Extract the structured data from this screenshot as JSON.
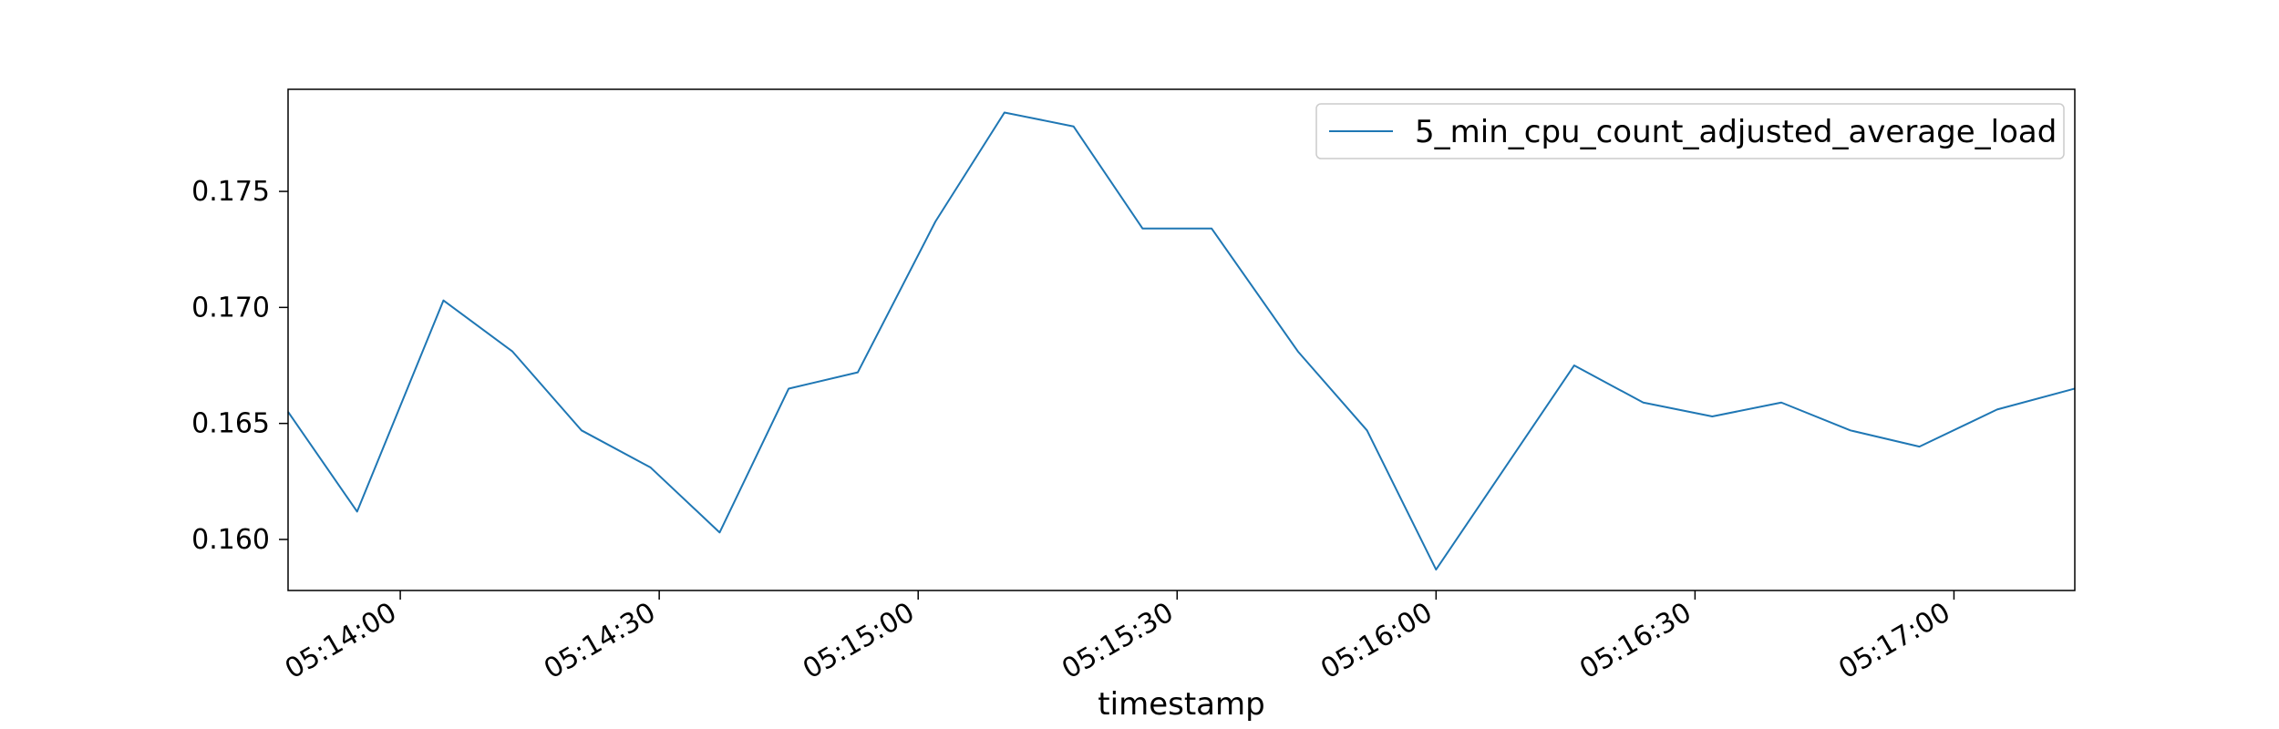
{
  "chart_data": {
    "type": "line",
    "title": "",
    "xlabel": "timestamp",
    "ylabel": "",
    "grid": false,
    "legend_position": "top-right",
    "x_range": [
      "05:13:47",
      "05:17:14"
    ],
    "ylim": [
      0.1578,
      0.1794
    ],
    "x_ticks": [
      "05:14:00",
      "05:14:30",
      "05:15:00",
      "05:15:30",
      "05:16:00",
      "05:16:30",
      "05:17:00"
    ],
    "y_ticks": [
      "0.160",
      "0.165",
      "0.170",
      "0.175"
    ],
    "series": [
      {
        "name": "5_min_cpu_count_adjusted_average_load",
        "color": "#1f77b4",
        "x": [
          "05:13:47",
          "05:13:55",
          "05:14:05",
          "05:14:13",
          "05:14:21",
          "05:14:29",
          "05:14:37",
          "05:14:45",
          "05:14:53",
          "05:15:02",
          "05:15:10",
          "05:15:18",
          "05:15:26",
          "05:15:34",
          "05:15:44",
          "05:15:52",
          "05:16:00",
          "05:16:08",
          "05:16:16",
          "05:16:24",
          "05:16:32",
          "05:16:40",
          "05:16:48",
          "05:16:56",
          "05:17:05",
          "05:17:14"
        ],
        "values": [
          0.1655,
          0.1612,
          0.1703,
          0.1681,
          0.1647,
          0.1631,
          0.1603,
          0.1665,
          0.1672,
          0.1737,
          0.1784,
          0.1778,
          0.1734,
          0.1734,
          0.1681,
          0.1647,
          0.1587,
          0.1631,
          0.1675,
          0.1659,
          0.1653,
          0.1659,
          0.1647,
          0.164,
          0.1656,
          0.1665
        ]
      }
    ]
  }
}
